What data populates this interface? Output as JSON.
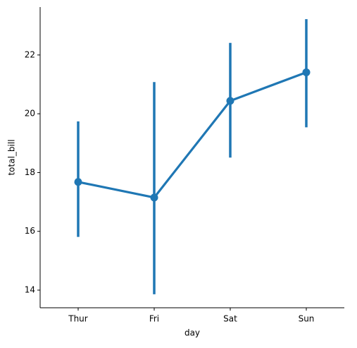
{
  "chart_data": {
    "type": "point",
    "x_label": "day",
    "y_label": "total_bill",
    "categories": [
      "Thur",
      "Fri",
      "Sat",
      "Sun"
    ],
    "values": [
      17.68,
      17.15,
      20.44,
      21.41
    ],
    "ci_low": [
      15.81,
      13.86,
      18.51,
      19.54
    ],
    "ci_high": [
      19.74,
      21.08,
      22.41,
      23.22
    ],
    "color": "#1f77b4",
    "ylim": [
      13.4,
      23.63
    ],
    "yticks": [
      14,
      16,
      18,
      20,
      22
    ]
  }
}
